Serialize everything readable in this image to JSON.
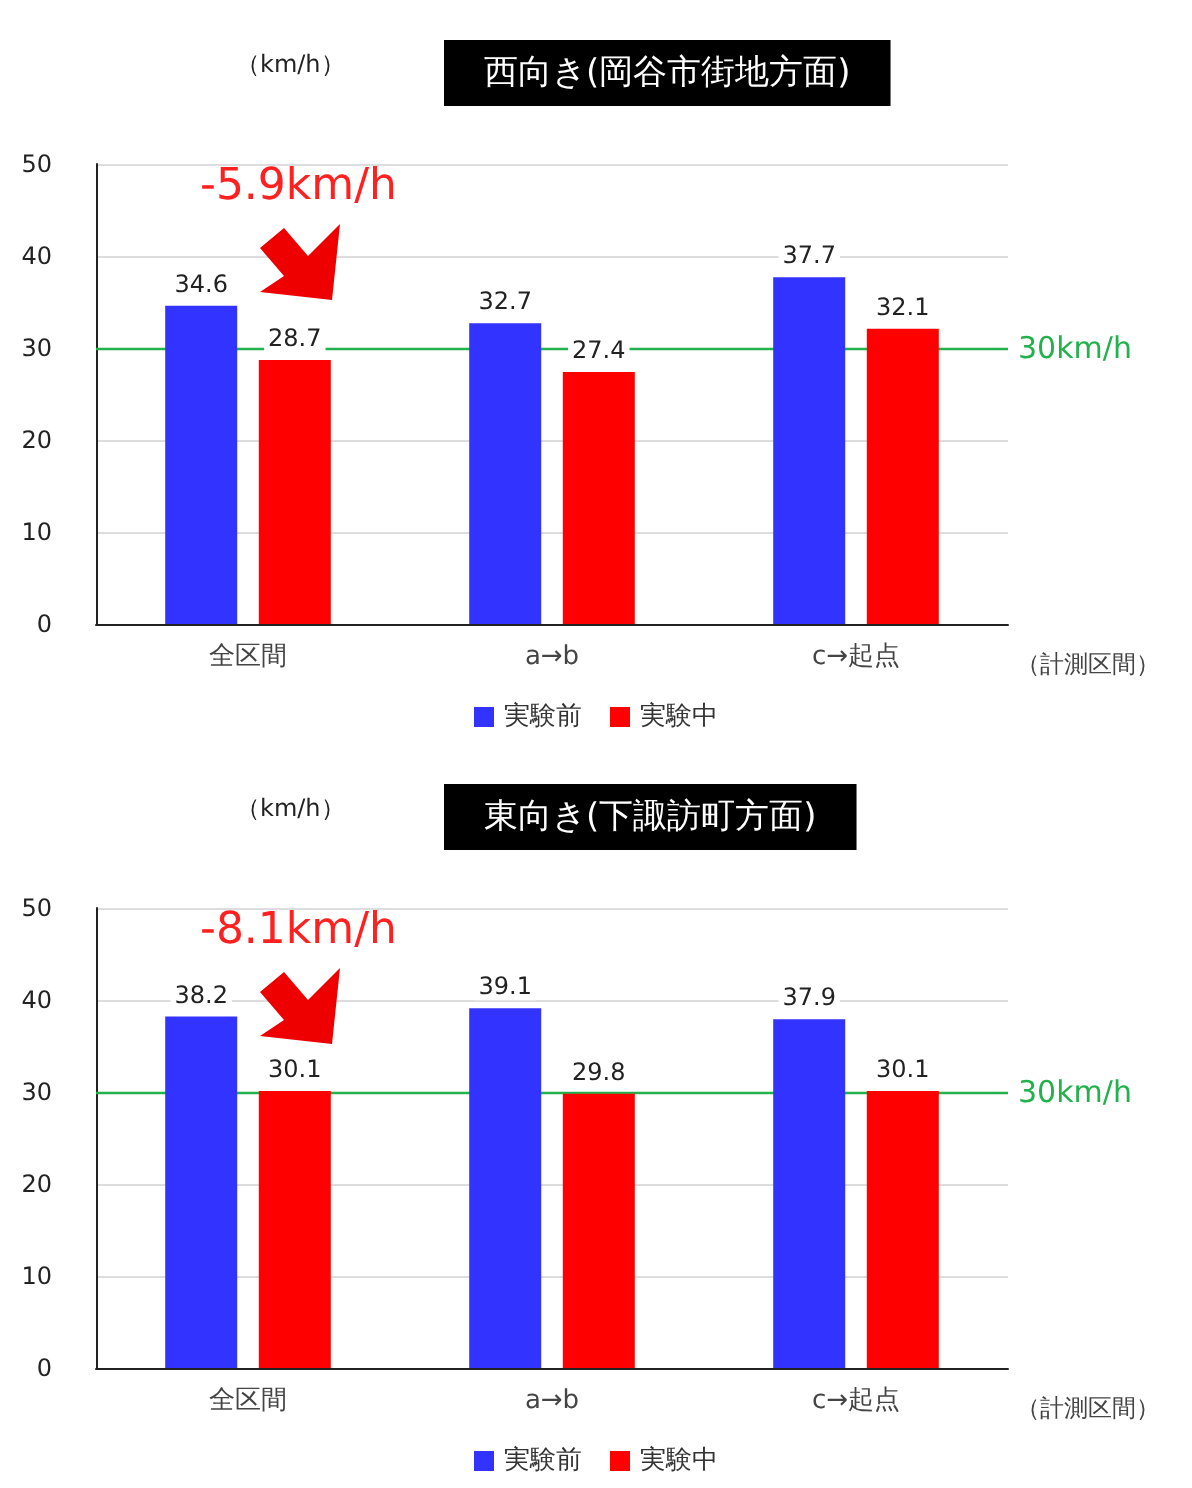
{
  "chart_data": [
    {
      "type": "bar",
      "title": "西向き(岡谷市街地方面)",
      "ylabel": "（km/h）",
      "xlabel": "（計測区間）",
      "categories": [
        "全区間",
        "a→b",
        "c→起点"
      ],
      "series": [
        {
          "name": "実験前",
          "color": "#3333ff",
          "values": [
            34.6,
            32.7,
            37.7
          ]
        },
        {
          "name": "実験中",
          "color": "#ff0000",
          "values": [
            28.7,
            27.4,
            32.1
          ]
        }
      ],
      "ylim": [
        0,
        50
      ],
      "yticks": [
        0,
        10,
        20,
        30,
        40,
        50
      ],
      "grid": "y",
      "legend": "bottom",
      "data_labels": true,
      "ref_lines": [
        {
          "axis": "y",
          "value": 30,
          "label": "30km/h",
          "color": "#22b14c"
        }
      ],
      "annotations": [
        "-5.9km/h"
      ]
    },
    {
      "type": "bar",
      "title": "東向き(下諏訪町方面)",
      "ylabel": "（km/h）",
      "xlabel": "（計測区間）",
      "categories": [
        "全区間",
        "a→b",
        "c→起点"
      ],
      "series": [
        {
          "name": "実験前",
          "color": "#3333ff",
          "values": [
            38.2,
            39.1,
            37.9
          ]
        },
        {
          "name": "実験中",
          "color": "#ff0000",
          "values": [
            30.1,
            29.8,
            30.1
          ]
        }
      ],
      "ylim": [
        0,
        50
      ],
      "yticks": [
        0,
        10,
        20,
        30,
        40,
        50
      ],
      "grid": "y",
      "legend": "bottom",
      "data_labels": true,
      "ref_lines": [
        {
          "axis": "y",
          "value": 30,
          "label": "30km/h",
          "color": "#22b14c"
        }
      ],
      "annotations": [
        "-8.1km/h"
      ]
    }
  ]
}
